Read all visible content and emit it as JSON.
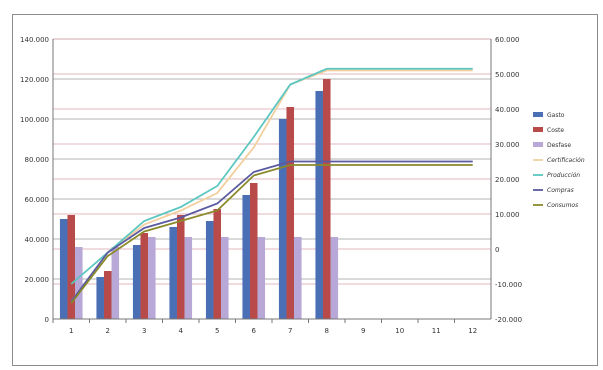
{
  "chart_data": {
    "type": "bar",
    "categories": [
      "1",
      "2",
      "3",
      "4",
      "5",
      "6",
      "7",
      "8",
      "9",
      "10",
      "11",
      "12"
    ],
    "y_left": {
      "ticks": [
        "0",
        "20.000",
        "40.000",
        "60.000",
        "80.000",
        "100.000",
        "120.000",
        "140.000"
      ],
      "ylim": [
        0,
        140000
      ]
    },
    "y_right": {
      "ticks": [
        "-20.000",
        "-10.000",
        "0",
        "10.000",
        "20.000",
        "30.000",
        "40.000",
        "50.000",
        "60.000"
      ],
      "ylim": [
        -20000,
        60000
      ]
    },
    "bar_series": [
      {
        "name": "Gasto",
        "color": "#4a6fb5",
        "axis": "left",
        "values": [
          50000,
          21000,
          37000,
          46000,
          49000,
          62000,
          100000,
          114000,
          null,
          null,
          null,
          null
        ]
      },
      {
        "name": "Coste",
        "color": "#b84a4a",
        "axis": "left",
        "values": [
          52000,
          24000,
          43000,
          52000,
          55000,
          68000,
          106000,
          120000,
          null,
          null,
          null,
          null
        ]
      },
      {
        "name": "Desfase",
        "color": "#b8a8d8",
        "axis": "left",
        "values": [
          36000,
          36000,
          41000,
          41000,
          41000,
          41000,
          41000,
          41000,
          null,
          null,
          null,
          null
        ]
      }
    ],
    "line_series": [
      {
        "name": "Certificación",
        "color": "#f3cfa0",
        "axis": "right",
        "values": [
          -15000,
          -1000,
          7000,
          11000,
          16000,
          29000,
          47000,
          51000,
          51000,
          51000,
          51000,
          51000
        ]
      },
      {
        "name": "Producción",
        "color": "#5cc7c0",
        "axis": "right",
        "values": [
          -10000,
          -1000,
          8000,
          12000,
          18000,
          32000,
          47000,
          51500,
          51500,
          51500,
          51500,
          51500
        ]
      },
      {
        "name": "Compras",
        "color": "#5a5aa0",
        "axis": "right",
        "values": [
          -15000,
          -1000,
          6000,
          9000,
          13000,
          22000,
          25000,
          25000,
          25000,
          25000,
          25000,
          25000
        ]
      },
      {
        "name": "Consumos",
        "color": "#8a8a2a",
        "axis": "right",
        "values": [
          -15500,
          -2000,
          5000,
          8000,
          11000,
          21000,
          24000,
          24000,
          24000,
          24000,
          24000,
          24000
        ]
      }
    ],
    "grid": true,
    "legend_position": "right"
  }
}
